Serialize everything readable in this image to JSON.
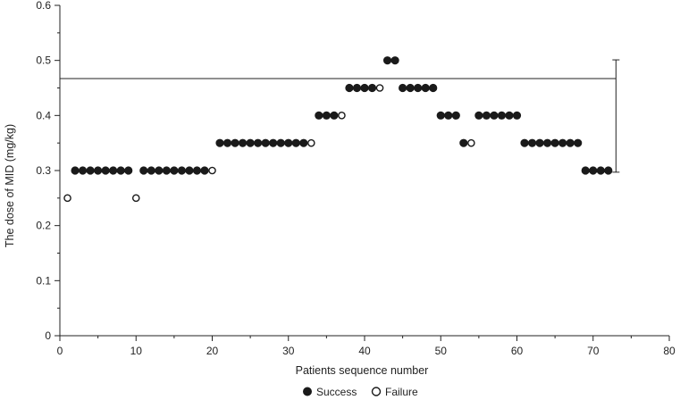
{
  "chart_data": {
    "type": "scatter",
    "title": "",
    "xlabel": "Patients sequence number",
    "ylabel": "The dose of MID (mg/kg)",
    "xlim": [
      0,
      80
    ],
    "ylim": [
      0,
      0.6
    ],
    "x_ticks": [
      0,
      10,
      20,
      30,
      40,
      50,
      60,
      70,
      80
    ],
    "y_ticks": [
      0,
      0.1,
      0.2,
      0.3,
      0.4,
      0.5,
      0.6
    ],
    "grid": false,
    "legend_position": "bottom-center",
    "reference_line": {
      "y": 0.467,
      "x_start": 0,
      "x_end": 73
    },
    "error_bar": {
      "x": 73,
      "y_low": 0.297,
      "y_high": 0.501
    },
    "series": [
      {
        "name": "Success",
        "marker": "filled-circle",
        "color": "#1a1a1a",
        "x": [
          2,
          3,
          4,
          5,
          6,
          7,
          8,
          9,
          11,
          12,
          13,
          14,
          15,
          16,
          17,
          18,
          19,
          21,
          22,
          23,
          24,
          25,
          26,
          27,
          28,
          29,
          30,
          31,
          32,
          34,
          35,
          36,
          38,
          39,
          40,
          41,
          43,
          44,
          45,
          46,
          47,
          48,
          49,
          50,
          51,
          52,
          53,
          55,
          56,
          57,
          58,
          59,
          60,
          61,
          62,
          63,
          64,
          65,
          66,
          67,
          68,
          69,
          70,
          71,
          72
        ],
        "y": [
          0.3,
          0.3,
          0.3,
          0.3,
          0.3,
          0.3,
          0.3,
          0.3,
          0.3,
          0.3,
          0.3,
          0.3,
          0.3,
          0.3,
          0.3,
          0.3,
          0.3,
          0.35,
          0.35,
          0.35,
          0.35,
          0.35,
          0.35,
          0.35,
          0.35,
          0.35,
          0.35,
          0.35,
          0.35,
          0.4,
          0.4,
          0.4,
          0.45,
          0.45,
          0.45,
          0.45,
          0.5,
          0.5,
          0.45,
          0.45,
          0.45,
          0.45,
          0.45,
          0.4,
          0.4,
          0.4,
          0.35,
          0.4,
          0.4,
          0.4,
          0.4,
          0.4,
          0.4,
          0.35,
          0.35,
          0.35,
          0.35,
          0.35,
          0.35,
          0.35,
          0.35,
          0.3,
          0.3,
          0.3,
          0.3
        ]
      },
      {
        "name": "Failure",
        "marker": "open-circle",
        "color": "#1a1a1a",
        "x": [
          1,
          10,
          20,
          33,
          37,
          42,
          54
        ],
        "y": [
          0.25,
          0.25,
          0.3,
          0.35,
          0.4,
          0.45,
          0.35
        ]
      }
    ]
  },
  "legend": {
    "success_label": "Success",
    "failure_label": "Failure"
  }
}
